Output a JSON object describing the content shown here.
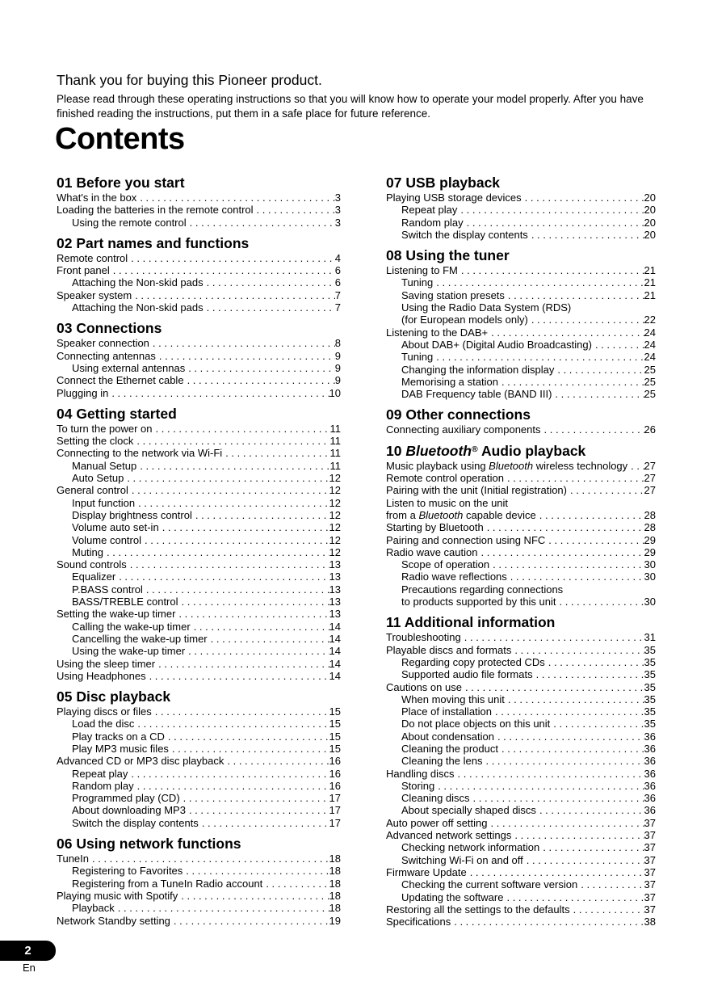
{
  "page": {
    "intro_title": "Thank you for buying this Pioneer product.",
    "intro_body": "Please read through these operating instructions so that you will know how to operate your model properly. After you have finished reading the instructions, put them in a safe place for future reference.",
    "contents_title": "Contents",
    "footer": {
      "page_number": "2",
      "language": "En"
    }
  },
  "toc": {
    "left_column": [
      {
        "number": "01",
        "title": "Before you start",
        "entries": [
          {
            "label": "What's in the box",
            "page": "3"
          },
          {
            "label": "Loading the batteries in the remote control",
            "page": "3"
          },
          {
            "label": "Using the remote control",
            "page": "3",
            "indent": true
          }
        ]
      },
      {
        "number": "02",
        "title": "Part names and functions",
        "entries": [
          {
            "label": "Remote control",
            "page": "4"
          },
          {
            "label": "Front panel",
            "page": "6"
          },
          {
            "label": "Attaching the Non-skid pads",
            "page": "6",
            "indent": true
          },
          {
            "label": "Speaker system",
            "page": "7"
          },
          {
            "label": "Attaching the Non-skid pads",
            "page": "7",
            "indent": true
          }
        ]
      },
      {
        "number": "03",
        "title": "Connections",
        "entries": [
          {
            "label": "Speaker connection",
            "page": "8"
          },
          {
            "label": "Connecting antennas",
            "page": "9"
          },
          {
            "label": "Using external antennas",
            "page": "9",
            "indent": true
          },
          {
            "label": "Connect the Ethernet cable",
            "page": "9"
          },
          {
            "label": "Plugging in",
            "page": "10"
          }
        ]
      },
      {
        "number": "04",
        "title": "Getting started",
        "entries": [
          {
            "label": "To turn the power on",
            "page": "11"
          },
          {
            "label": "Setting the clock",
            "page": "11"
          },
          {
            "label": "Connecting to the network via Wi-Fi",
            "page": "11"
          },
          {
            "label": "Manual Setup",
            "page": "11",
            "indent": true
          },
          {
            "label": "Auto Setup",
            "page": "12",
            "indent": true
          },
          {
            "label": "General control",
            "page": "12"
          },
          {
            "label": "Input function",
            "page": "12",
            "indent": true
          },
          {
            "label": "Display brightness control",
            "page": "12",
            "indent": true
          },
          {
            "label": "Volume auto set-in",
            "page": "12",
            "indent": true
          },
          {
            "label": "Volume control",
            "page": "12",
            "indent": true
          },
          {
            "label": "Muting",
            "page": "12",
            "indent": true
          },
          {
            "label": "Sound controls",
            "page": "13"
          },
          {
            "label": "Equalizer",
            "page": "13",
            "indent": true
          },
          {
            "label": "P.BASS control",
            "page": "13",
            "indent": true
          },
          {
            "label": "BASS/TREBLE control",
            "page": "13",
            "indent": true
          },
          {
            "label": "Setting the wake-up timer",
            "page": "13"
          },
          {
            "label": "Calling the wake-up timer",
            "page": "14",
            "indent": true
          },
          {
            "label": "Cancelling the wake-up timer",
            "page": "14",
            "indent": true
          },
          {
            "label": "Using the wake-up timer",
            "page": "14",
            "indent": true
          },
          {
            "label": "Using the sleep timer",
            "page": "14"
          },
          {
            "label": "Using Headphones",
            "page": "14"
          }
        ]
      },
      {
        "number": "05",
        "title": "Disc playback",
        "entries": [
          {
            "label": "Playing discs or files",
            "page": "15"
          },
          {
            "label": "Load the disc",
            "page": "15",
            "indent": true
          },
          {
            "label": "Play tracks on a CD",
            "page": "15",
            "indent": true
          },
          {
            "label": "Play MP3 music files",
            "page": "15",
            "indent": true
          },
          {
            "label": "Advanced CD or MP3 disc playback",
            "page": "16"
          },
          {
            "label": "Repeat play",
            "page": "16",
            "indent": true
          },
          {
            "label": "Random play",
            "page": "16",
            "indent": true
          },
          {
            "label": "Programmed play (CD)",
            "page": "17",
            "indent": true
          },
          {
            "label": "About downloading MP3",
            "page": "17",
            "indent": true
          },
          {
            "label": "Switch the display contents",
            "page": "17",
            "indent": true
          }
        ]
      },
      {
        "number": "06",
        "title": "Using network functions",
        "entries": [
          {
            "label": "TuneIn",
            "page": "18"
          },
          {
            "label": "Registering to Favorites",
            "page": "18",
            "indent": true
          },
          {
            "label": "Registering from a TuneIn Radio account",
            "page": "18",
            "indent": true
          },
          {
            "label": "Playing music with Spotify",
            "page": "18"
          },
          {
            "label": "Playback",
            "page": "18",
            "indent": true
          },
          {
            "label": "Network Standby setting",
            "page": "19"
          }
        ]
      }
    ],
    "right_column": [
      {
        "number": "07",
        "title": "USB playback",
        "entries": [
          {
            "label": "Playing USB storage devices",
            "page": "20"
          },
          {
            "label": "Repeat play",
            "page": "20",
            "indent": true
          },
          {
            "label": "Random play",
            "page": "20",
            "indent": true
          },
          {
            "label": "Switch the display contents",
            "page": "20",
            "indent": true
          }
        ]
      },
      {
        "number": "08",
        "title": "Using the tuner",
        "entries": [
          {
            "label": "Listening to FM",
            "page": "21"
          },
          {
            "label": "Tuning",
            "page": "21",
            "indent": true
          },
          {
            "label": "Saving station presets",
            "page": "21",
            "indent": true
          },
          {
            "label": "Using the Radio Data System (RDS)",
            "page": null,
            "indent": true
          },
          {
            "label": "(for European models only)",
            "page": "22",
            "indent": true
          },
          {
            "label": "Listening to the DAB+",
            "page": "24"
          },
          {
            "label": "About DAB+ (Digital Audio Broadcasting)",
            "page": "24",
            "indent": true
          },
          {
            "label": "Tuning",
            "page": "24",
            "indent": true
          },
          {
            "label": "Changing the information display",
            "page": "25",
            "indent": true
          },
          {
            "label": "Memorising a station",
            "page": "25",
            "indent": true
          },
          {
            "label": "DAB Frequency table (BAND III)",
            "page": "25",
            "indent": true
          }
        ]
      },
      {
        "number": "09",
        "title": "Other connections",
        "entries": [
          {
            "label": "Connecting auxiliary components",
            "page": "26"
          }
        ]
      },
      {
        "number": "10",
        "title": "*Bluetooth*® Audio playback",
        "entries": [
          {
            "label": "Music playback using *Bluetooth* wireless technology",
            "page": "27"
          },
          {
            "label": "Remote control operation",
            "page": "27"
          },
          {
            "label": "Pairing with the unit (Initial registration)",
            "page": "27"
          },
          {
            "label": "Listen to music on the unit",
            "page": null
          },
          {
            "label": "from a *Bluetooth* capable device",
            "page": "28"
          },
          {
            "label": "Starting by Bluetooth",
            "page": "28"
          },
          {
            "label": "Pairing and connection using NFC",
            "page": "29"
          },
          {
            "label": "Radio wave caution",
            "page": "29"
          },
          {
            "label": "Scope of operation",
            "page": "30",
            "indent": true
          },
          {
            "label": "Radio wave reflections",
            "page": "30",
            "indent": true
          },
          {
            "label": "Precautions regarding connections",
            "page": null,
            "indent": true
          },
          {
            "label": "to products supported by this unit",
            "page": "30",
            "indent": true
          }
        ]
      },
      {
        "number": "11",
        "title": "Additional information",
        "entries": [
          {
            "label": "Troubleshooting",
            "page": "31"
          },
          {
            "label": "Playable discs and formats",
            "page": "35"
          },
          {
            "label": "Regarding copy protected CDs",
            "page": "35",
            "indent": true
          },
          {
            "label": "Supported audio file formats",
            "page": "35",
            "indent": true
          },
          {
            "label": "Cautions on use",
            "page": "35"
          },
          {
            "label": "When moving this unit",
            "page": "35",
            "indent": true
          },
          {
            "label": "Place of installation",
            "page": "35",
            "indent": true
          },
          {
            "label": "Do not place objects on this unit",
            "page": "35",
            "indent": true
          },
          {
            "label": "About condensation",
            "page": "36",
            "indent": true
          },
          {
            "label": "Cleaning the product",
            "page": "36",
            "indent": true
          },
          {
            "label": "Cleaning the lens",
            "page": "36",
            "indent": true
          },
          {
            "label": "Handling discs",
            "page": "36"
          },
          {
            "label": "Storing",
            "page": "36",
            "indent": true
          },
          {
            "label": "Cleaning discs",
            "page": "36",
            "indent": true
          },
          {
            "label": "About specially shaped discs",
            "page": "36",
            "indent": true
          },
          {
            "label": "Auto power off setting",
            "page": "37"
          },
          {
            "label": "Advanced network settings",
            "page": "37"
          },
          {
            "label": "Checking network information",
            "page": "37",
            "indent": true
          },
          {
            "label": "Switching Wi-Fi on and off",
            "page": "37",
            "indent": true
          },
          {
            "label": "Firmware Update",
            "page": "37"
          },
          {
            "label": "Checking the current software version",
            "page": "37",
            "indent": true
          },
          {
            "label": "Updating the software",
            "page": "37",
            "indent": true
          },
          {
            "label": "Restoring all the settings to the defaults",
            "page": "37"
          },
          {
            "label": "Specifications",
            "page": "38"
          }
        ]
      }
    ]
  }
}
